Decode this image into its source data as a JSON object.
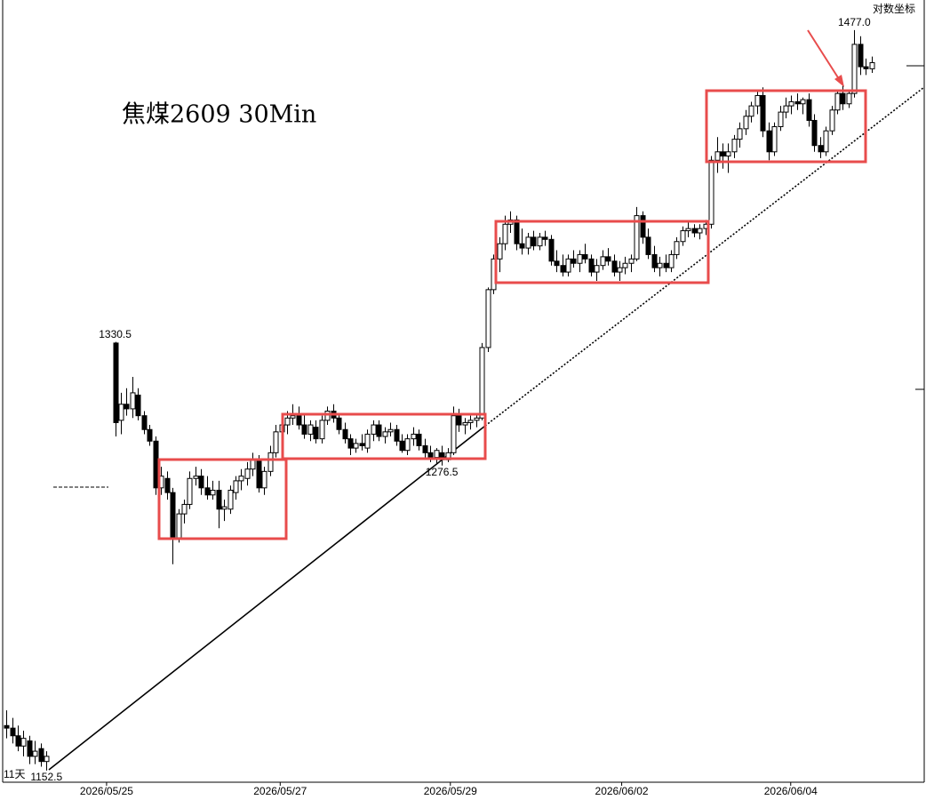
{
  "chart_data": {
    "type": "candlestick",
    "title": "焦煤2609 30Min",
    "scale_label": "对数坐标",
    "corner_label": "11天",
    "log": true,
    "up_color": "#ffffff",
    "down_color": "#000000",
    "xlim": [
      -1.1,
      160.2
    ],
    "ylim": [
      1148,
      1492
    ],
    "xticks": [
      {
        "value": 17.5,
        "label": "2026/05/25"
      },
      {
        "value": 47.8,
        "label": "2026/05/27"
      },
      {
        "value": 77.5,
        "label": "2026/05/29"
      },
      {
        "value": 107.4,
        "label": "2026/06/02"
      },
      {
        "value": 136.9,
        "label": "2026/06/04"
      }
    ],
    "annotations": [
      {
        "x": 19,
        "value": 1330.5,
        "label": "1330.5"
      },
      {
        "x": 148,
        "value": 1477,
        "label": "1477.0"
      },
      {
        "x": 76,
        "value": 1276.5,
        "label": "1276.5"
      },
      {
        "x": 7,
        "value": 1152.5,
        "label": "1152.5"
      }
    ],
    "x": [
      0,
      1,
      2,
      3,
      4,
      5,
      6,
      7,
      19,
      20,
      21,
      22,
      23,
      24,
      25,
      26,
      27,
      28,
      29,
      30,
      31,
      32,
      33,
      34,
      35,
      36,
      37,
      38,
      39,
      40,
      41,
      42,
      43,
      44,
      45,
      46,
      47,
      48,
      49,
      50,
      51,
      52,
      53,
      54,
      55,
      56,
      57,
      58,
      59,
      60,
      61,
      62,
      63,
      64,
      65,
      66,
      67,
      68,
      69,
      70,
      71,
      72,
      73,
      74,
      75,
      76,
      77,
      78,
      79,
      80,
      81,
      82,
      83,
      84,
      85,
      86,
      87,
      88,
      89,
      90,
      91,
      92,
      93,
      94,
      95,
      96,
      97,
      98,
      99,
      100,
      101,
      102,
      103,
      104,
      105,
      106,
      107,
      108,
      109,
      110,
      111,
      112,
      113,
      114,
      115,
      116,
      117,
      118,
      119,
      120,
      121,
      122,
      123,
      124,
      125,
      126,
      127,
      128,
      129,
      130,
      131,
      132,
      133,
      134,
      135,
      136,
      137,
      138,
      139,
      140,
      141,
      142,
      143,
      144,
      145,
      146,
      147,
      148,
      149,
      150,
      151
    ],
    "open": [
      1170,
      1169,
      1166,
      1162,
      1164,
      1158,
      1161,
      1156,
      1330,
      1296,
      1303,
      1301,
      1307,
      1298,
      1292,
      1287,
      1267,
      1271,
      1265,
      1246,
      1256,
      1260,
      1271,
      1272,
      1267,
      1264,
      1266,
      1258,
      1258,
      1265,
      1270,
      1271,
      1275,
      1279,
      1267,
      1274,
      1282,
      1291,
      1294,
      1297,
      1298,
      1294,
      1290,
      1293,
      1288,
      1296,
      1300,
      1297,
      1292,
      1288,
      1284,
      1286,
      1284,
      1290,
      1294,
      1289,
      1291,
      1292,
      1287,
      1283,
      1288,
      1290,
      1285,
      1282,
      1280,
      1282,
      1279,
      1282,
      1298,
      1294,
      1295,
      1296,
      1297,
      1328,
      1354,
      1368,
      1375,
      1384,
      1386,
      1375,
      1373,
      1378,
      1374,
      1378,
      1377,
      1367,
      1365,
      1362,
      1368,
      1366,
      1370,
      1368,
      1362,
      1365,
      1369,
      1367,
      1362,
      1364,
      1366,
      1368,
      1388,
      1378,
      1370,
      1364,
      1366,
      1364,
      1370,
      1376,
      1381,
      1382,
      1380,
      1382,
      1384,
      1414,
      1418,
      1416,
      1418,
      1424,
      1429,
      1435,
      1440,
      1445,
      1428,
      1418,
      1430,
      1437,
      1440,
      1442,
      1441,
      1443,
      1433,
      1421,
      1418,
      1428,
      1438,
      1446,
      1441,
      1446,
      1470,
      1459,
      1458
    ],
    "high": [
      1176,
      1173,
      1170,
      1168,
      1166,
      1164,
      1163,
      1160,
      1330.5,
      1308,
      1310,
      1315,
      1310,
      1300,
      1294,
      1289,
      1276,
      1274,
      1267,
      1258,
      1262,
      1274,
      1276,
      1275,
      1272,
      1270,
      1270,
      1262,
      1268,
      1272,
      1275,
      1278,
      1282,
      1281,
      1276,
      1285,
      1294,
      1298,
      1300,
      1303,
      1302,
      1299,
      1296,
      1296,
      1298,
      1302,
      1303,
      1299,
      1295,
      1290,
      1288,
      1290,
      1292,
      1296,
      1296,
      1293,
      1295,
      1294,
      1290,
      1290,
      1293,
      1292,
      1288,
      1285,
      1284,
      1285,
      1284,
      1302,
      1301,
      1297,
      1298,
      1299,
      1330,
      1355,
      1370,
      1378,
      1388,
      1390,
      1388,
      1382,
      1380,
      1381,
      1380,
      1381,
      1379,
      1372,
      1370,
      1370,
      1372,
      1372,
      1375,
      1370,
      1368,
      1372,
      1373,
      1370,
      1367,
      1369,
      1370,
      1392,
      1390,
      1382,
      1374,
      1369,
      1370,
      1372,
      1378,
      1383,
      1385,
      1384,
      1384,
      1386,
      1416,
      1425,
      1422,
      1422,
      1426,
      1432,
      1438,
      1442,
      1447,
      1449,
      1432,
      1432,
      1440,
      1444,
      1445,
      1446,
      1444,
      1446,
      1436,
      1425,
      1430,
      1440,
      1448,
      1450,
      1448,
      1477,
      1474,
      1463,
      1464
    ],
    "low": [
      1165,
      1163,
      1160,
      1158,
      1155,
      1155,
      1154,
      1152.5,
      1289,
      1290,
      1298,
      1297,
      1296,
      1290,
      1285,
      1264,
      1264,
      1262,
      1235,
      1244,
      1252,
      1258,
      1268,
      1264,
      1262,
      1262,
      1250,
      1253,
      1256,
      1262,
      1266,
      1268,
      1272,
      1265,
      1264,
      1272,
      1280,
      1288,
      1290,
      1294,
      1292,
      1288,
      1287,
      1286,
      1286,
      1294,
      1295,
      1290,
      1286,
      1281,
      1282,
      1283,
      1282,
      1287,
      1287,
      1286,
      1289,
      1285,
      1282,
      1281,
      1285,
      1283,
      1280,
      1278,
      1277,
      1276.5,
      1278,
      1281,
      1291,
      1290,
      1292,
      1293,
      1296,
      1326,
      1352,
      1362,
      1372,
      1380,
      1372,
      1370,
      1370,
      1372,
      1372,
      1374,
      1365,
      1362,
      1360,
      1360,
      1364,
      1362,
      1366,
      1360,
      1358,
      1363,
      1365,
      1360,
      1358,
      1361,
      1362,
      1367,
      1375,
      1368,
      1362,
      1360,
      1362,
      1362,
      1368,
      1374,
      1378,
      1378,
      1377,
      1379,
      1382,
      1408,
      1410,
      1408,
      1415,
      1420,
      1426,
      1432,
      1436,
      1425,
      1414,
      1416,
      1428,
      1434,
      1436,
      1438,
      1436,
      1430,
      1418,
      1415,
      1416,
      1426,
      1436,
      1438,
      1439,
      1444,
      1455,
      1455,
      1456
    ],
    "close": [
      1169,
      1166,
      1162,
      1165,
      1158,
      1160,
      1156,
      1158,
      1295,
      1303,
      1301,
      1308,
      1298,
      1292,
      1287,
      1267,
      1272,
      1265,
      1246,
      1256,
      1260,
      1271,
      1272,
      1267,
      1264,
      1266,
      1258,
      1259,
      1266,
      1270,
      1272,
      1275,
      1279,
      1267,
      1274,
      1282,
      1291,
      1294,
      1297,
      1298,
      1294,
      1290,
      1294,
      1288,
      1296,
      1300,
      1297,
      1292,
      1288,
      1284,
      1286,
      1285,
      1290,
      1294,
      1289,
      1291,
      1292,
      1287,
      1283,
      1288,
      1290,
      1285,
      1282,
      1280,
      1283,
      1279,
      1282,
      1298,
      1294,
      1295,
      1296,
      1297,
      1328,
      1354,
      1368,
      1375,
      1384,
      1386,
      1375,
      1373,
      1378,
      1374,
      1378,
      1377,
      1367,
      1365,
      1362,
      1368,
      1366,
      1370,
      1368,
      1362,
      1365,
      1369,
      1367,
      1362,
      1364,
      1366,
      1368,
      1388,
      1378,
      1370,
      1364,
      1366,
      1364,
      1370,
      1376,
      1381,
      1382,
      1380,
      1382,
      1384,
      1414,
      1418,
      1416,
      1418,
      1424,
      1429,
      1435,
      1440,
      1445,
      1428,
      1418,
      1430,
      1437,
      1440,
      1442,
      1441,
      1443,
      1433,
      1421,
      1418,
      1428,
      1438,
      1446,
      1441,
      1446,
      1470,
      1459,
      1458,
      1461
    ]
  }
}
